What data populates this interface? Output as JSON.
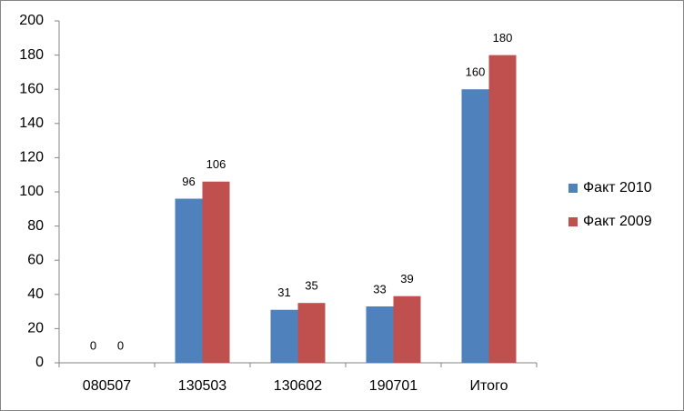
{
  "chart_data": {
    "type": "bar",
    "categories": [
      "080507",
      "130503",
      "130602",
      "190701",
      "Итого"
    ],
    "series": [
      {
        "name": "Факт 2010",
        "color": "#4f81bd",
        "values": [
          0,
          96,
          31,
          33,
          160
        ]
      },
      {
        "name": "Факт 2009",
        "color": "#c0504d",
        "values": [
          0,
          106,
          35,
          39,
          180
        ]
      }
    ],
    "ylim": [
      0,
      200
    ],
    "yticks": [
      0,
      20,
      40,
      60,
      80,
      100,
      120,
      140,
      160,
      180,
      200
    ],
    "grid": false,
    "legend": "right",
    "data_labels": true
  }
}
